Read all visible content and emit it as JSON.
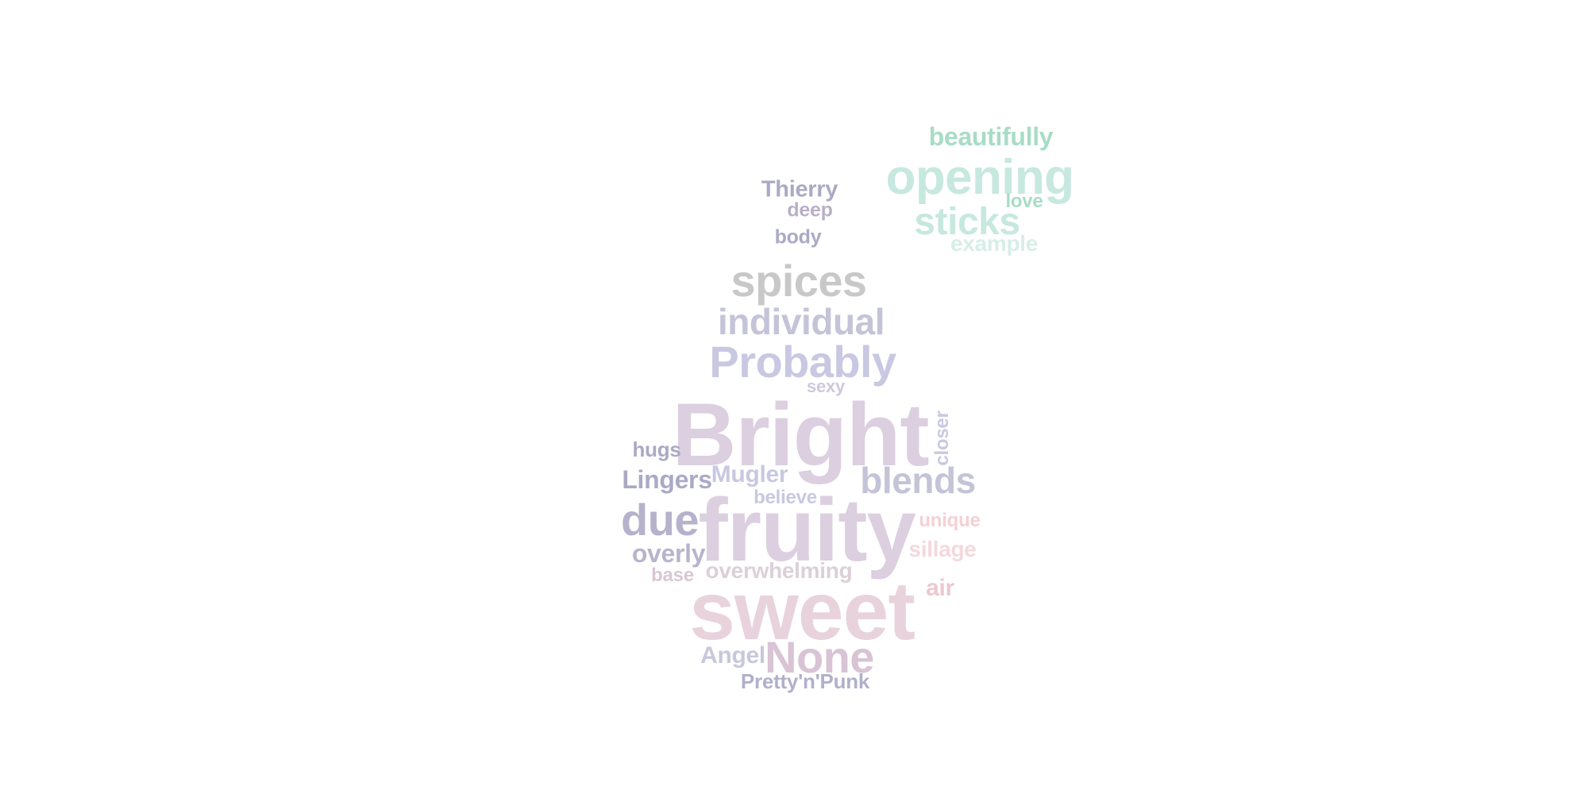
{
  "colors": {
    "mint": "#a8dcc6",
    "mint_light": "#c6e8df",
    "mint_pale": "#d8eee8",
    "grey": "#c8c8c8",
    "lavender_grey": "#c4c4d8",
    "periwinkle": "#c8c8e2",
    "slate_purple": "#aaaac6",
    "mauve": "#dccfe0",
    "mauve_dark": "#cdbed6",
    "pink": "#e8d3dc",
    "pink_light": "#f4d8dc",
    "pink_bright": "#f5d0d4"
  },
  "words": {
    "beautifully": "beautifully",
    "opening": "opening",
    "love": "love",
    "sticks": "sticks",
    "example": "example",
    "thierry": "Thierry",
    "deep": "deep",
    "body": "body",
    "spices": "spices",
    "individual": "individual",
    "probably": "Probably",
    "sexy": "sexy",
    "bright": "Bright",
    "closer": "closer",
    "hugs": "hugs",
    "lingers": "Lingers",
    "mugler": "Mugler",
    "blends": "blends",
    "believe": "believe",
    "due": "due",
    "fruity": "fruity",
    "unique": "unique",
    "sillage": "sillage",
    "overly": "overly",
    "overwhelming": "overwhelming",
    "base": "base",
    "sweet": "sweet",
    "air": "air",
    "angel": "Angel",
    "none": "None",
    "prettypunk": "Pretty'n'Punk"
  }
}
